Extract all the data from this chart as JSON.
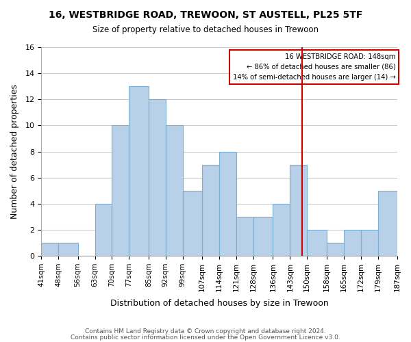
{
  "title": "16, WESTBRIDGE ROAD, TREWOON, ST AUSTELL, PL25 5TF",
  "subtitle": "Size of property relative to detached houses in Trewoon",
  "xlabel": "Distribution of detached houses by size in Trewoon",
  "ylabel": "Number of detached properties",
  "bin_labels": [
    "41sqm",
    "48sqm",
    "56sqm",
    "63sqm",
    "70sqm",
    "77sqm",
    "85sqm",
    "92sqm",
    "99sqm",
    "107sqm",
    "114sqm",
    "121sqm",
    "128sqm",
    "136sqm",
    "143sqm",
    "150sqm",
    "158sqm",
    "165sqm",
    "172sqm",
    "179sqm",
    "187sqm"
  ],
  "bin_edges": [
    41,
    48,
    56,
    63,
    70,
    77,
    85,
    92,
    99,
    107,
    114,
    121,
    128,
    136,
    143,
    150,
    158,
    165,
    172,
    179,
    187
  ],
  "counts": [
    1,
    1,
    0,
    4,
    10,
    13,
    12,
    10,
    5,
    7,
    8,
    3,
    3,
    4,
    7,
    2,
    1,
    2,
    2,
    5
  ],
  "bar_color": "#b8d0e8",
  "bar_edge_color": "#7aafd4",
  "marker_value": 148,
  "marker_color": "#cc0000",
  "annotation_title": "16 WESTBRIDGE ROAD: 148sqm",
  "annotation_line1": "← 86% of detached houses are smaller (86)",
  "annotation_line2": "14% of semi-detached houses are larger (14) →",
  "annotation_box_color": "#ffffff",
  "annotation_box_edge": "#cc0000",
  "ylim": [
    0,
    16
  ],
  "yticks": [
    0,
    2,
    4,
    6,
    8,
    10,
    12,
    14,
    16
  ],
  "footer1": "Contains HM Land Registry data © Crown copyright and database right 2024.",
  "footer2": "Contains public sector information licensed under the Open Government Licence v3.0.",
  "background_color": "#ffffff",
  "grid_color": "#cccccc"
}
